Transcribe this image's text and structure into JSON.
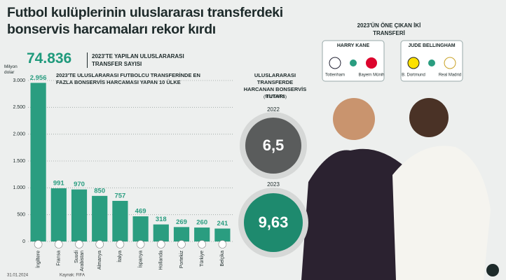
{
  "header": {
    "title": "Futbol kulüplerinin uluslararası transferdeki bonservis harcamaları rekor kırdı"
  },
  "stat": {
    "number": "74.836",
    "label": "2023'TE YAPILAN ULUSLARARASI TRANSFER SAYISI"
  },
  "chart_data": {
    "type": "bar",
    "title": "2023'TE ULUSLARARASI FUTBOLCU TRANSFERİNDE EN FAZLA BONSERVİS HARCAMASI YAPAN 10 ÜLKE",
    "y_label": "Milyon dolar",
    "categories": [
      "İngiltere",
      "Fransa",
      "Suudi Arabistan",
      "Almanya",
      "İtalya",
      "İspanya",
      "Hollanda",
      "Portekiz",
      "Türkiye",
      "Belçika"
    ],
    "values": [
      2956,
      991,
      970,
      850,
      757,
      469,
      318,
      269,
      260,
      241
    ],
    "value_labels": [
      "2.956",
      "991",
      "970",
      "850",
      "757",
      "469",
      "318",
      "269",
      "260",
      "241"
    ],
    "color": "#2a9d80",
    "ylim": [
      0,
      3000
    ],
    "yticks": [
      0,
      500,
      {
        "value": 1000,
        "label": "1.000"
      },
      {
        "value": 1500,
        "label": "1.500"
      },
      {
        "value": 2000,
        "label": "2.000"
      },
      {
        "value": 2500,
        "label": "2.500"
      },
      {
        "value": 3000,
        "label": "3.000"
      }
    ],
    "grid": true
  },
  "spending": {
    "title": "ULUSLARARASI TRANSFERDE HARCANAN BONSERVİS TUTARI",
    "unit": "(MİLYAR $)",
    "items": [
      {
        "year": "2022",
        "value": "6,5"
      },
      {
        "year": "2023",
        "value": "9,63"
      }
    ]
  },
  "transfers": {
    "title": "2023'ÜN ÖNE ÇIKAN İKİ TRANSFERİ",
    "cards": [
      {
        "player": "HARRY KANE",
        "from": "Tottenham",
        "to": "Bayern Münih"
      },
      {
        "player": "JUDE BELLINGHAM",
        "from": "B. Dortmund",
        "to": "Real Madrid"
      }
    ]
  },
  "footer": {
    "date": "31.01.2024",
    "source": "Kaynak: FIFA"
  }
}
